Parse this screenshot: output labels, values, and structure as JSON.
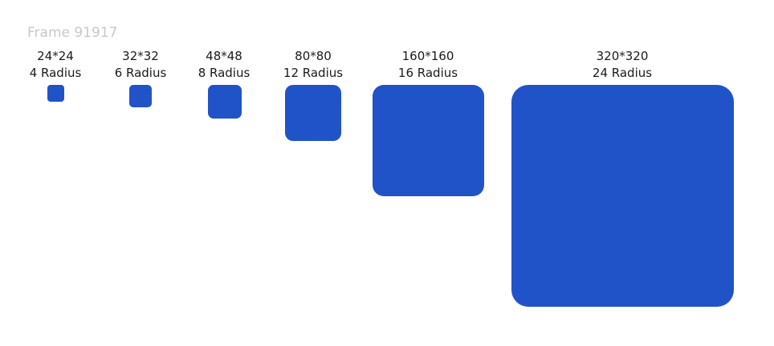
{
  "frame": {
    "title": "Frame 91917"
  },
  "swatches": [
    {
      "size_label": "24*24",
      "radius_label": "4 Radius"
    },
    {
      "size_label": "32*32",
      "radius_label": "6 Radius"
    },
    {
      "size_label": "48*48",
      "radius_label": "8 Radius"
    },
    {
      "size_label": "80*80",
      "radius_label": "12 Radius"
    },
    {
      "size_label": "160*160",
      "radius_label": "16 Radius"
    },
    {
      "size_label": "320*320",
      "radius_label": "24 Radius"
    }
  ],
  "colors": {
    "swatch_fill": "#2153c8",
    "caption_text": "#1a1a1a",
    "frame_label": "#c8c8c8",
    "background": "#ffffff"
  }
}
